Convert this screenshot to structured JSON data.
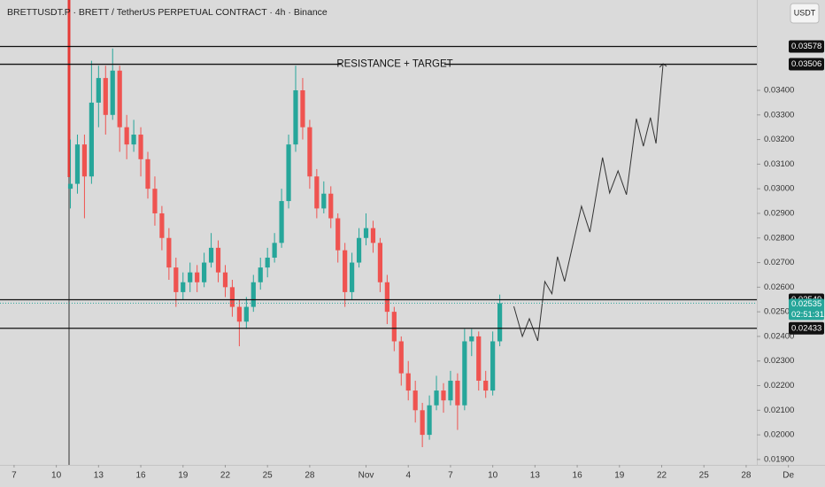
{
  "chart_data": {
    "type": "candlestick",
    "title": "BRETTUSDT.P · BRETT / TetherUS PERPETUAL CONTRACT · 4h · Binance",
    "currency": "USDT",
    "up_color": "#26a69a",
    "down_color": "#ef5350",
    "xlim": [
      -1,
      57.6
    ],
    "ylim": [
      0.01878,
      0.03767
    ],
    "xticks": [
      {
        "value": 0,
        "label": "7"
      },
      {
        "value": 3,
        "label": "10"
      },
      {
        "value": 6,
        "label": "13"
      },
      {
        "value": 9,
        "label": "16"
      },
      {
        "value": 12,
        "label": "19"
      },
      {
        "value": 15,
        "label": "22"
      },
      {
        "value": 18,
        "label": "25"
      },
      {
        "value": 21,
        "label": "28"
      },
      {
        "value": 25,
        "label": "Nov"
      },
      {
        "value": 28,
        "label": "4"
      },
      {
        "value": 31,
        "label": "7"
      },
      {
        "value": 34,
        "label": "10"
      },
      {
        "value": 37,
        "label": "13"
      },
      {
        "value": 40,
        "label": "16"
      },
      {
        "value": 43,
        "label": "19"
      },
      {
        "value": 46,
        "label": "22"
      },
      {
        "value": 49,
        "label": "25"
      },
      {
        "value": 52,
        "label": "28"
      },
      {
        "value": 55,
        "label": "De"
      }
    ],
    "yticks": [
      {
        "value": 0.019,
        "label": "0.01900"
      },
      {
        "value": 0.02,
        "label": "0.02000"
      },
      {
        "value": 0.021,
        "label": "0.02100"
      },
      {
        "value": 0.022,
        "label": "0.02200"
      },
      {
        "value": 0.023,
        "label": "0.02300"
      },
      {
        "value": 0.024,
        "label": "0.02400"
      },
      {
        "value": 0.025,
        "label": "0.02500"
      },
      {
        "value": 0.026,
        "label": "0.02600"
      },
      {
        "value": 0.027,
        "label": "0.02700"
      },
      {
        "value": 0.028,
        "label": "0.02800"
      },
      {
        "value": 0.029,
        "label": "0.02900"
      },
      {
        "value": 0.03,
        "label": "0.03000"
      },
      {
        "value": 0.031,
        "label": "0.03100"
      },
      {
        "value": 0.032,
        "label": "0.03200"
      },
      {
        "value": 0.033,
        "label": "0.03300"
      },
      {
        "value": 0.034,
        "label": "0.03400"
      }
    ],
    "levels": [
      0.03578,
      0.03506,
      0.02549,
      0.02433
    ],
    "annotation": "RESISTANCE + TARGET",
    "current_price": 0.02535,
    "countdown": "02:51:31",
    "candles": [
      [
        4,
        0.03,
        0.032,
        0.0292,
        0.0302
      ],
      [
        4.5,
        0.0302,
        0.0322,
        0.0298,
        0.0318
      ],
      [
        5,
        0.0318,
        0.0322,
        0.0288,
        0.0305
      ],
      [
        5.5,
        0.0305,
        0.0352,
        0.0302,
        0.0335
      ],
      [
        6,
        0.0335,
        0.035,
        0.0325,
        0.0345
      ],
      [
        6.5,
        0.0345,
        0.035,
        0.0322,
        0.033
      ],
      [
        7,
        0.033,
        0.0357,
        0.0328,
        0.0348
      ],
      [
        7.5,
        0.0348,
        0.035,
        0.0315,
        0.0325
      ],
      [
        8,
        0.0325,
        0.033,
        0.0312,
        0.0318
      ],
      [
        8.5,
        0.0318,
        0.0328,
        0.0315,
        0.0322
      ],
      [
        9,
        0.0322,
        0.0325,
        0.0305,
        0.0312
      ],
      [
        9.5,
        0.0312,
        0.0315,
        0.0296,
        0.03
      ],
      [
        10,
        0.03,
        0.0305,
        0.0285,
        0.029
      ],
      [
        10.5,
        0.029,
        0.0293,
        0.0275,
        0.028
      ],
      [
        11,
        0.028,
        0.0284,
        0.0263,
        0.0268
      ],
      [
        11.5,
        0.0268,
        0.0272,
        0.0252,
        0.0258
      ],
      [
        12,
        0.0258,
        0.0266,
        0.0255,
        0.0262
      ],
      [
        12.5,
        0.0262,
        0.027,
        0.0258,
        0.0266
      ],
      [
        13,
        0.0266,
        0.0269,
        0.0258,
        0.0262
      ],
      [
        13.5,
        0.0262,
        0.0274,
        0.026,
        0.027
      ],
      [
        14,
        0.027,
        0.0282,
        0.0268,
        0.0276
      ],
      [
        14.5,
        0.0276,
        0.0279,
        0.0262,
        0.0266
      ],
      [
        15,
        0.0266,
        0.0269,
        0.0256,
        0.026
      ],
      [
        15.5,
        0.026,
        0.0263,
        0.0248,
        0.0252
      ],
      [
        16,
        0.0252,
        0.0255,
        0.0236,
        0.0246
      ],
      [
        16.5,
        0.0246,
        0.0256,
        0.0243,
        0.0252
      ],
      [
        17,
        0.0252,
        0.0265,
        0.025,
        0.0262
      ],
      [
        17.5,
        0.0262,
        0.0272,
        0.0259,
        0.0268
      ],
      [
        18,
        0.0268,
        0.0276,
        0.0264,
        0.0272
      ],
      [
        18.5,
        0.0272,
        0.0282,
        0.027,
        0.0278
      ],
      [
        19,
        0.0278,
        0.03,
        0.0276,
        0.0295
      ],
      [
        19.5,
        0.0295,
        0.0322,
        0.0292,
        0.0318
      ],
      [
        20,
        0.0318,
        0.035,
        0.0315,
        0.034
      ],
      [
        20.5,
        0.034,
        0.0345,
        0.032,
        0.0325
      ],
      [
        21,
        0.0325,
        0.0328,
        0.03,
        0.0305
      ],
      [
        21.5,
        0.0305,
        0.0308,
        0.0288,
        0.0292
      ],
      [
        22,
        0.0292,
        0.0303,
        0.029,
        0.0298
      ],
      [
        22.5,
        0.0298,
        0.0301,
        0.0284,
        0.0288
      ],
      [
        23,
        0.0288,
        0.029,
        0.027,
        0.0275
      ],
      [
        23.5,
        0.0275,
        0.0278,
        0.0252,
        0.0258
      ],
      [
        24,
        0.0258,
        0.0274,
        0.0255,
        0.027
      ],
      [
        24.5,
        0.027,
        0.0284,
        0.0268,
        0.028
      ],
      [
        25,
        0.028,
        0.029,
        0.0277,
        0.0284
      ],
      [
        25.5,
        0.0284,
        0.0287,
        0.0274,
        0.0278
      ],
      [
        26,
        0.0278,
        0.028,
        0.0258,
        0.0262
      ],
      [
        26.5,
        0.0262,
        0.0265,
        0.0245,
        0.025
      ],
      [
        27,
        0.025,
        0.0252,
        0.0234,
        0.0238
      ],
      [
        27.5,
        0.0238,
        0.024,
        0.022,
        0.0225
      ],
      [
        28,
        0.0225,
        0.023,
        0.0214,
        0.0218
      ],
      [
        28.5,
        0.0218,
        0.0222,
        0.0205,
        0.021
      ],
      [
        29,
        0.021,
        0.0213,
        0.0195,
        0.02
      ],
      [
        29.5,
        0.02,
        0.0216,
        0.0198,
        0.0212
      ],
      [
        30,
        0.0212,
        0.0224,
        0.021,
        0.0218
      ],
      [
        30.5,
        0.0218,
        0.0221,
        0.0209,
        0.0214
      ],
      [
        31,
        0.0214,
        0.0226,
        0.0212,
        0.0222
      ],
      [
        31.5,
        0.0222,
        0.0225,
        0.0202,
        0.0212
      ],
      [
        32,
        0.0212,
        0.0243,
        0.021,
        0.0238
      ],
      [
        32.5,
        0.0238,
        0.0243,
        0.0232,
        0.024
      ],
      [
        33,
        0.024,
        0.0242,
        0.0218,
        0.0222
      ],
      [
        33.5,
        0.0222,
        0.0226,
        0.0215,
        0.0218
      ],
      [
        34,
        0.0218,
        0.0242,
        0.0216,
        0.0238
      ],
      [
        34.5,
        0.0238,
        0.0257,
        0.0236,
        0.02535
      ]
    ],
    "projection": {
      "x": [
        35.5,
        36.1,
        36.6,
        37.2,
        37.7,
        38.2,
        38.6,
        39.1,
        40.3,
        40.9,
        41.8,
        42.3,
        42.9,
        43.5,
        44.2,
        44.7,
        45.2,
        45.6,
        46.1
      ],
      "values": [
        0.02522,
        0.024,
        0.02472,
        0.02382,
        0.02623,
        0.02573,
        0.02724,
        0.02623,
        0.02929,
        0.02824,
        0.03127,
        0.02983,
        0.03073,
        0.02976,
        0.03285,
        0.03173,
        0.03289,
        0.03184,
        0.03508
      ]
    }
  }
}
